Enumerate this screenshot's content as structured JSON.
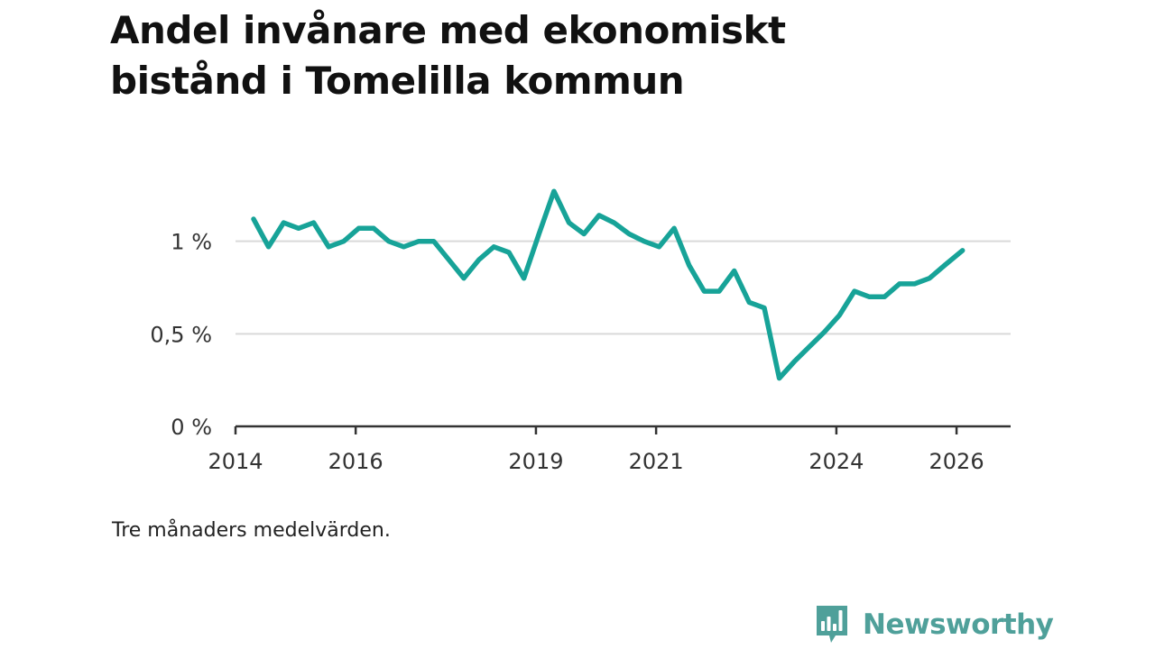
{
  "title": "Andel invånare med ekonomiskt bistånd i Tomelilla kommun",
  "note": "Tre månaders medelvärden.",
  "brand": {
    "name": "Newsworthy"
  },
  "colors": {
    "line": "#17a398",
    "grid": "#d9d9d9",
    "axis": "#333333",
    "brand": "#4fa09a"
  },
  "chart_data": {
    "type": "line",
    "title": "Andel invånare med ekonomiskt bistånd i Tomelilla kommun",
    "xlabel": "",
    "ylabel": "",
    "xlim": [
      2014,
      2026.9
    ],
    "ylim": [
      0,
      1.5
    ],
    "grid": "horizontal",
    "x_ticks": [
      {
        "value": 2014,
        "label": "2014"
      },
      {
        "value": 2016,
        "label": "2016"
      },
      {
        "value": 2019,
        "label": "2019"
      },
      {
        "value": 2021,
        "label": "2021"
      },
      {
        "value": 2024,
        "label": "2024"
      },
      {
        "value": 2026,
        "label": "2026"
      }
    ],
    "y_ticks": [
      {
        "value": 0,
        "label": "0 %"
      },
      {
        "value": 0.5,
        "label": "0,5 %"
      },
      {
        "value": 1,
        "label": "1 %"
      }
    ],
    "series": [
      {
        "name": "Andel invånare med ekonomiskt bistånd",
        "x": [
          2014.3,
          2014.55,
          2014.8,
          2015.05,
          2015.3,
          2015.55,
          2015.8,
          2016.05,
          2016.3,
          2016.55,
          2016.8,
          2017.05,
          2017.3,
          2017.55,
          2017.8,
          2018.05,
          2018.3,
          2018.55,
          2018.8,
          2019.05,
          2019.3,
          2019.55,
          2019.8,
          2020.05,
          2020.3,
          2020.55,
          2020.8,
          2021.05,
          2021.3,
          2021.55,
          2021.8,
          2022.05,
          2022.3,
          2022.55,
          2022.8,
          2023.05,
          2023.3,
          2023.55,
          2023.8,
          2024.05,
          2024.3,
          2024.55,
          2024.8,
          2025.05,
          2025.3,
          2025.55,
          2025.8,
          2026.1
        ],
        "values": [
          1.12,
          0.97,
          1.1,
          1.07,
          1.1,
          0.97,
          1.0,
          1.07,
          1.07,
          1.0,
          0.97,
          1.0,
          1.0,
          0.9,
          0.8,
          0.9,
          0.97,
          0.94,
          0.8,
          1.04,
          1.27,
          1.1,
          1.04,
          1.14,
          1.1,
          1.04,
          1.0,
          0.97,
          1.07,
          0.87,
          0.73,
          0.73,
          0.84,
          0.67,
          0.64,
          0.26,
          0.35,
          0.43,
          0.51,
          0.6,
          0.73,
          0.7,
          0.7,
          0.77,
          0.77,
          0.8,
          0.87,
          0.95
        ]
      }
    ]
  }
}
